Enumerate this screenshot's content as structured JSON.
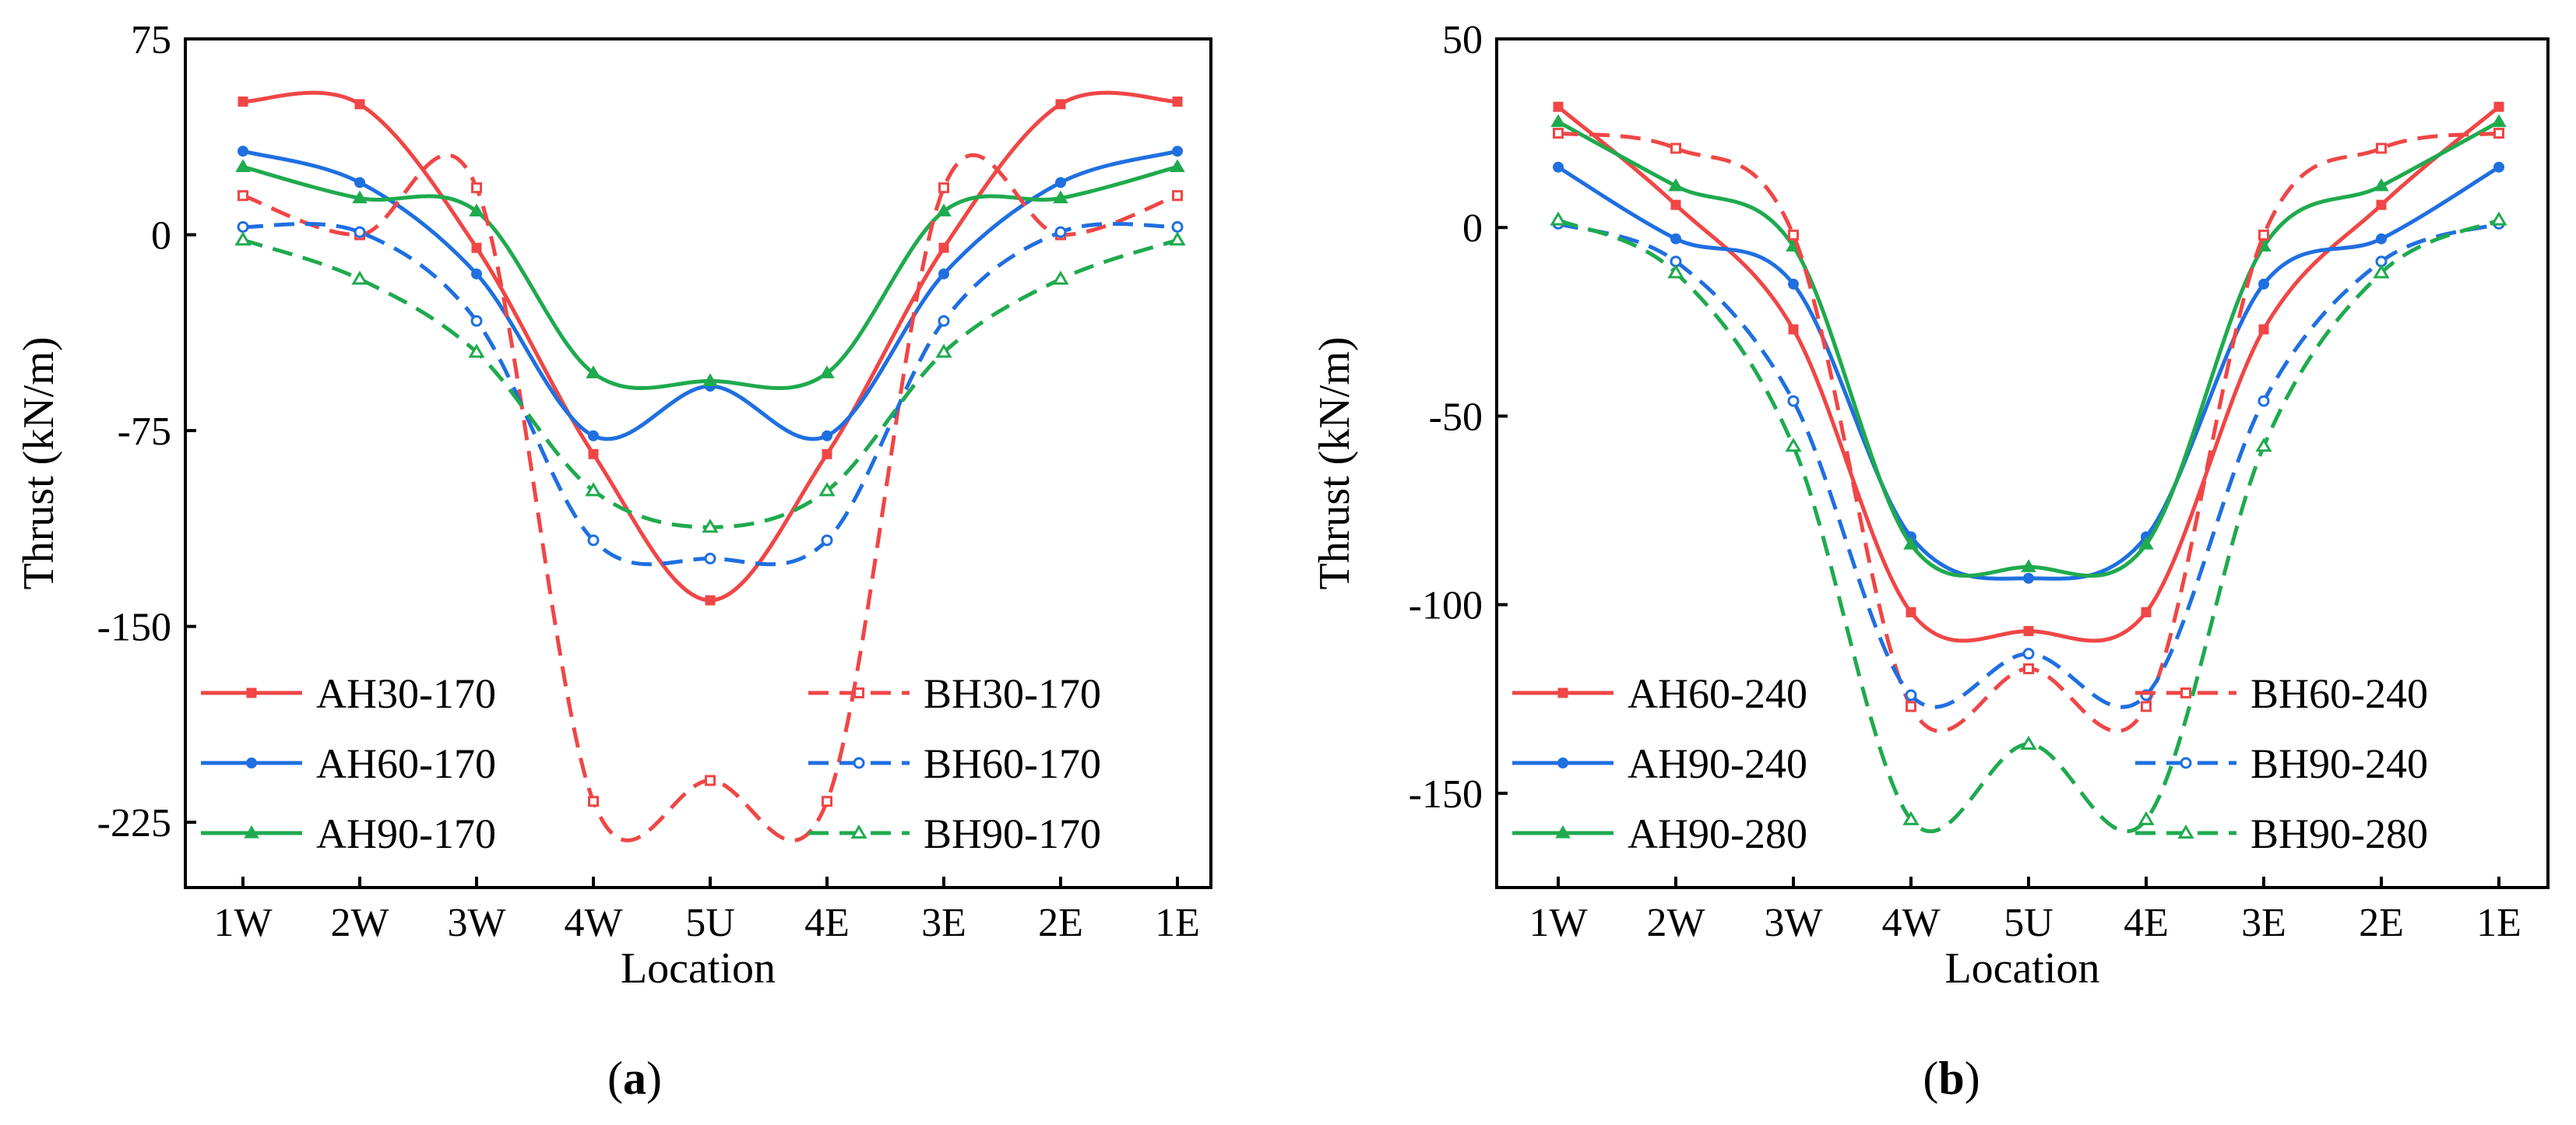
{
  "chart_data": [
    {
      "type": "line",
      "panel_label": "a",
      "xlabel": "Location",
      "ylabel": "Thrust (kN/m)",
      "categories": [
        "1W",
        "2W",
        "3W",
        "4W",
        "5U",
        "4E",
        "3E",
        "2E",
        "1E"
      ],
      "ylim": [
        -250,
        75
      ],
      "yticks": [
        75,
        0,
        -75,
        -150,
        -225
      ],
      "ytick_labels": [
        "75",
        "0",
        "-75",
        "-150",
        "-225"
      ],
      "legend_location": "bottom",
      "series": [
        {
          "name": "AH30-170",
          "color": "#f04646",
          "style": "solid",
          "marker": "square-filled",
          "values": [
            51,
            50,
            -5,
            -84,
            -140,
            -84,
            -5,
            50,
            51
          ]
        },
        {
          "name": "AH60-170",
          "color": "#1f6fe0",
          "style": "solid",
          "marker": "circle-filled",
          "values": [
            32,
            20,
            -15,
            -77,
            -58,
            -77,
            -15,
            20,
            32
          ]
        },
        {
          "name": "AH90-170",
          "color": "#1faa4e",
          "style": "solid",
          "marker": "triangle-filled",
          "values": [
            26,
            14,
            9,
            -53,
            -56,
            -53,
            9,
            14,
            26
          ]
        },
        {
          "name": "BH30-170",
          "color": "#f04646",
          "style": "dashed",
          "marker": "square-open",
          "values": [
            15,
            0,
            18,
            -217,
            -209,
            -217,
            18,
            0,
            15
          ]
        },
        {
          "name": "BH60-170",
          "color": "#1f6fe0",
          "style": "dashed",
          "marker": "circle-open",
          "values": [
            3,
            1,
            -33,
            -117,
            -124,
            -117,
            -33,
            1,
            3
          ]
        },
        {
          "name": "BH90-170",
          "color": "#1faa4e",
          "style": "dashed",
          "marker": "triangle-open",
          "values": [
            -2,
            -17,
            -45,
            -98,
            -112,
            -98,
            -45,
            -17,
            -2
          ]
        }
      ]
    },
    {
      "type": "line",
      "panel_label": "b",
      "xlabel": "Location",
      "ylabel": "Thrust (kN/m)",
      "categories": [
        "1W",
        "2W",
        "3W",
        "4W",
        "5U",
        "4E",
        "3E",
        "2E",
        "1E"
      ],
      "ylim": [
        -175,
        50
      ],
      "yticks": [
        50,
        0,
        -50,
        -100,
        -150
      ],
      "ytick_labels": [
        "50",
        "0",
        "-50",
        "-100",
        "-150"
      ],
      "legend_location": "bottom",
      "series": [
        {
          "name": "AH60-240",
          "color": "#f04646",
          "style": "solid",
          "marker": "square-filled",
          "values": [
            32,
            6,
            -27,
            -102,
            -107,
            -102,
            -27,
            6,
            32
          ]
        },
        {
          "name": "AH90-240",
          "color": "#1f6fe0",
          "style": "solid",
          "marker": "circle-filled",
          "values": [
            16,
            -3,
            -15,
            -82,
            -93,
            -82,
            -15,
            -3,
            16
          ]
        },
        {
          "name": "AH90-280",
          "color": "#1faa4e",
          "style": "solid",
          "marker": "triangle-filled",
          "values": [
            28,
            11,
            -5,
            -84,
            -90,
            -84,
            -5,
            11,
            28
          ]
        },
        {
          "name": "BH60-240",
          "color": "#f04646",
          "style": "dashed",
          "marker": "square-open",
          "values": [
            25,
            21,
            -2,
            -127,
            -117,
            -127,
            -2,
            21,
            25
          ]
        },
        {
          "name": "BH90-240",
          "color": "#1f6fe0",
          "style": "dashed",
          "marker": "circle-open",
          "values": [
            1,
            -9,
            -46,
            -124,
            -113,
            -124,
            -46,
            -9,
            1
          ]
        },
        {
          "name": "BH90-280",
          "color": "#1faa4e",
          "style": "dashed",
          "marker": "triangle-open",
          "values": [
            2,
            -12,
            -58,
            -157,
            -137,
            -157,
            -58,
            -12,
            2
          ]
        }
      ]
    }
  ]
}
